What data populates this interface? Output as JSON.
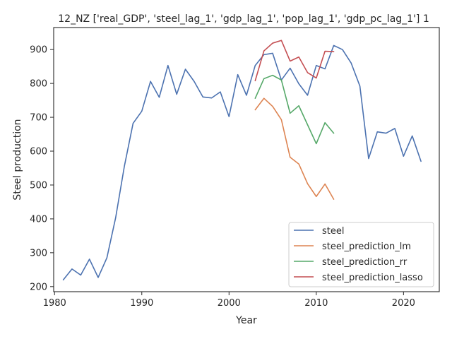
{
  "chart_data": {
    "type": "line",
    "title": "12_NZ ['real_GDP', 'steel_lag_1', 'gdp_lag_1', 'pop_lag_1', 'gdp_pc_lag_1'] 1",
    "xlabel": "Year",
    "ylabel": "Steel production",
    "xlim": [
      1979.9,
      2024.1
    ],
    "ylim": [
      185,
      965
    ],
    "xticks": [
      1980,
      1990,
      2000,
      2010,
      2020
    ],
    "yticks": [
      200,
      300,
      400,
      500,
      600,
      700,
      800,
      900
    ],
    "grid": false,
    "legend_position": "lower-right",
    "series": [
      {
        "name": "steel",
        "color": "#4c72b0",
        "x": [
          1981,
          1982,
          1983,
          1984,
          1985,
          1986,
          1987,
          1988,
          1989,
          1990,
          1991,
          1992,
          1993,
          1994,
          1995,
          1996,
          1997,
          1998,
          1999,
          2000,
          2001,
          2002,
          2003,
          2004,
          2005,
          2006,
          2007,
          2008,
          2009,
          2010,
          2011,
          2012,
          2013,
          2014,
          2015,
          2016,
          2017,
          2018,
          2019,
          2020,
          2021,
          2022
        ],
        "values": [
          220,
          252,
          234,
          281,
          227,
          285,
          403,
          555,
          682,
          718,
          806,
          759,
          853,
          768,
          842,
          806,
          760,
          757,
          775,
          702,
          826,
          765,
          853,
          885,
          889,
          810,
          845,
          799,
          765,
          853,
          843,
          912,
          900,
          860,
          792,
          578,
          657,
          653,
          667,
          585,
          645,
          570
        ]
      },
      {
        "name": "steel_prediction_lm",
        "color": "#dd8452",
        "x": [
          2003,
          2004,
          2005,
          2006,
          2007,
          2008,
          2009,
          2010,
          2011,
          2012
        ],
        "values": [
          722,
          756,
          732,
          693,
          582,
          562,
          504,
          466,
          503,
          458
        ]
      },
      {
        "name": "steel_prediction_rr",
        "color": "#55a868",
        "x": [
          2003,
          2004,
          2005,
          2006,
          2007,
          2008,
          2009,
          2010,
          2011,
          2012
        ],
        "values": [
          756,
          814,
          824,
          810,
          712,
          734,
          678,
          622,
          684,
          653
        ]
      },
      {
        "name": "steel_prediction_lasso",
        "color": "#c44e52",
        "x": [
          2003,
          2004,
          2005,
          2006,
          2007,
          2008,
          2009,
          2010,
          2011,
          2012
        ],
        "values": [
          808,
          896,
          919,
          927,
          866,
          878,
          832,
          816,
          895,
          894
        ]
      }
    ]
  }
}
